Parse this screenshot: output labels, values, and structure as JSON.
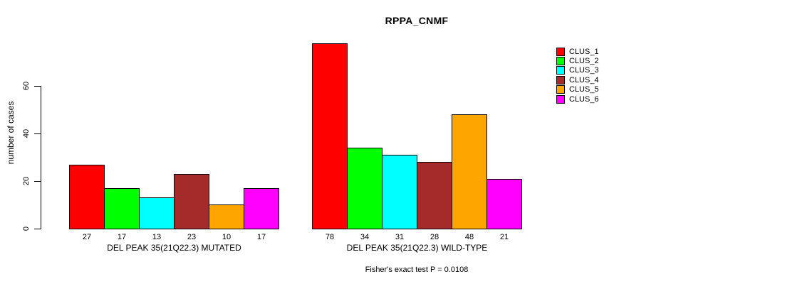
{
  "title": "RPPA_CNMF",
  "y_axis": {
    "label": "number of cases",
    "ticks": [
      "0",
      "20",
      "40",
      "60"
    ]
  },
  "footer": "Fisher's exact test P = 0.0108",
  "legend": {
    "items": [
      {
        "label": "CLUS_1",
        "color": "#FF0000"
      },
      {
        "label": "CLUS_2",
        "color": "#00FF00"
      },
      {
        "label": "CLUS_3",
        "color": "#00FFFF"
      },
      {
        "label": "CLUS_4",
        "color": "#A52A2A"
      },
      {
        "label": "CLUS_5",
        "color": "#FFA500"
      },
      {
        "label": "CLUS_6",
        "color": "#FF00FF"
      }
    ]
  },
  "chart_data": {
    "type": "bar",
    "title": "RPPA_CNMF",
    "xlabel": "",
    "ylabel": "number of cases",
    "ylim": [
      0,
      80
    ],
    "yticks": [
      0,
      20,
      40,
      60
    ],
    "grid": false,
    "legend_position": "right",
    "bar_value_labels_shown": true,
    "categories": [
      "DEL PEAK 35(21Q22.3) MUTATED",
      "DEL PEAK 35(21Q22.3) WILD-TYPE"
    ],
    "series": [
      {
        "name": "CLUS_1",
        "color": "#FF0000",
        "values": [
          27,
          78
        ]
      },
      {
        "name": "CLUS_2",
        "color": "#00FF00",
        "values": [
          17,
          34
        ]
      },
      {
        "name": "CLUS_3",
        "color": "#00FFFF",
        "values": [
          13,
          31
        ]
      },
      {
        "name": "CLUS_4",
        "color": "#A52A2A",
        "values": [
          23,
          28
        ]
      },
      {
        "name": "CLUS_5",
        "color": "#FFA500",
        "values": [
          10,
          48
        ]
      },
      {
        "name": "CLUS_6",
        "color": "#FF00FF",
        "values": [
          17,
          21
        ]
      }
    ],
    "annotation": "Fisher's exact test P = 0.0108"
  }
}
